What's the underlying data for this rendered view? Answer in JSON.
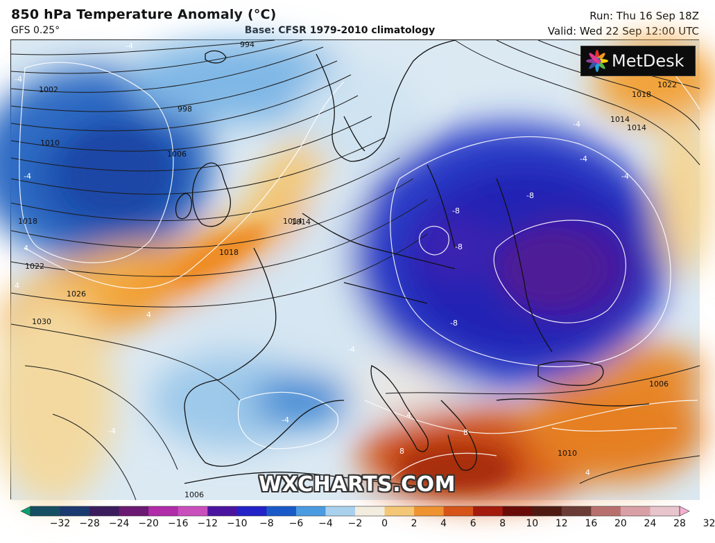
{
  "header": {
    "title": "850 hPa Temperature Anomaly (°C)",
    "model": "GFS 0.25°",
    "base": "Base: CFSR 1979-2010 climatology",
    "run": "Run: Thu 16 Sep 18Z",
    "valid": "Valid: Wed 22 Sep 12:00 UTC"
  },
  "branding": {
    "logo_text": "MetDesk",
    "watermark": "WXCHARTS.COM"
  },
  "map": {
    "isobar_labels": [
      "994",
      "998",
      "1002",
      "1006",
      "1010",
      "1014",
      "1018",
      "1022",
      "1026",
      "1030",
      "1014",
      "1018",
      "1022",
      "1014",
      "1006",
      "1010",
      "1018",
      "1014",
      "1006",
      "1006"
    ],
    "anomaly_labels": [
      "-4",
      "-4",
      "-4",
      "4",
      "4",
      "4",
      "-4",
      "-8",
      "-8",
      "-8",
      "-8",
      "-4",
      "-4",
      "-4",
      "-4",
      "8",
      "8",
      "4",
      "-4",
      "4"
    ]
  },
  "legend": {
    "tick_labels": [
      "−32",
      "−28",
      "−24",
      "−20",
      "−16",
      "−12",
      "−10",
      "−8",
      "−6",
      "−4",
      "−2",
      "0",
      "2",
      "4",
      "6",
      "8",
      "10",
      "12",
      "16",
      "20",
      "24",
      "28",
      "32"
    ],
    "colors": [
      "#0a9e72",
      "#164f63",
      "#1b3a6f",
      "#3b1d5e",
      "#6a1a72",
      "#b02ca8",
      "#c94fbd",
      "#4b14a0",
      "#2222c8",
      "#1a5ac8",
      "#4a9be0",
      "#a9d1ee",
      "#f3eddf",
      "#f3c775",
      "#ef9330",
      "#d65417",
      "#a41a0c",
      "#6b0b08",
      "#4e1a12",
      "#6b3c35",
      "#b8706e",
      "#d8a0a6",
      "#e8c4cc",
      "#f5b0d4"
    ]
  }
}
